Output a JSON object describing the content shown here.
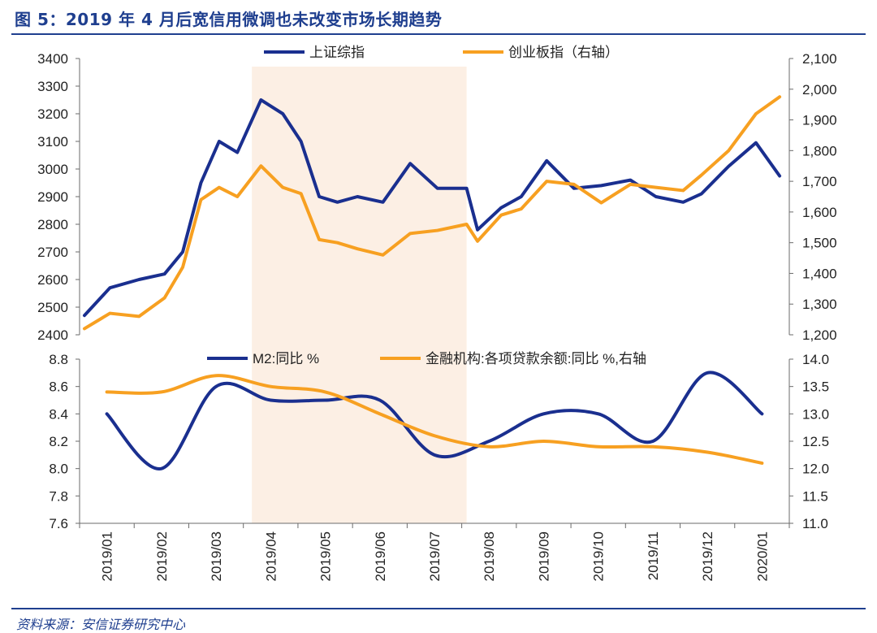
{
  "figure_title": "图 5：2019 年 4 月后宽信用微调也未改变市场长期趋势",
  "source_note": "资料来源：安信证券研究中心",
  "colors": {
    "navy": "#1a2f8f",
    "orange": "#f7a021",
    "shade": "#fcefe4",
    "axis": "#6b6b6b",
    "frame": "#1f3f8f"
  },
  "chart_data": [
    {
      "type": "line",
      "legend_position": "top",
      "grid": false,
      "shaded_period": {
        "from": "2019-04",
        "to": "2019-07"
      },
      "y_left": {
        "ticks": [
          "2400",
          "2500",
          "2600",
          "2700",
          "2800",
          "2900",
          "3000",
          "3100",
          "3200",
          "3300",
          "3400"
        ],
        "lim": [
          2400,
          3400
        ]
      },
      "y_right": {
        "ticks": [
          "1,200",
          "1,300",
          "1,400",
          "1,500",
          "1,600",
          "1,700",
          "1,800",
          "1,900",
          "2,000",
          "2,100"
        ],
        "lim": [
          1200,
          2100
        ]
      },
      "series": [
        {
          "name": "上证综指",
          "axis": "left",
          "color": "#1a2f8f",
          "x": [
            "2019-01",
            "2019-01-15",
            "2019-02-01",
            "2019-02-15",
            "2019-02-25",
            "2019-03-05",
            "2019-03-15",
            "2019-03-25",
            "2019-04-08",
            "2019-04-20",
            "2019-04-30",
            "2019-05-10",
            "2019-05-20",
            "2019-05-31",
            "2019-06-15",
            "2019-06-30",
            "2019-07-15",
            "2019-07-31",
            "2019-08-07",
            "2019-08-20",
            "2019-08-31",
            "2019-09-15",
            "2019-09-30",
            "2019-10-15",
            "2019-10-31",
            "2019-11-15",
            "2019-11-30",
            "2019-12-10",
            "2019-12-25",
            "2020-01-10",
            "2020-01-23"
          ],
          "y": [
            2470,
            2570,
            2600,
            2620,
            2700,
            2950,
            3100,
            3060,
            3250,
            3200,
            3100,
            2900,
            2880,
            2900,
            2880,
            3020,
            2930,
            2930,
            2780,
            2860,
            2900,
            3030,
            2930,
            2940,
            2960,
            2900,
            2880,
            2910,
            3010,
            3095,
            2975
          ]
        },
        {
          "name": "创业板指（右轴）",
          "axis": "right",
          "color": "#f7a021",
          "x": [
            "2019-01",
            "2019-01-15",
            "2019-02-01",
            "2019-02-15",
            "2019-02-25",
            "2019-03-05",
            "2019-03-15",
            "2019-03-25",
            "2019-04-08",
            "2019-04-20",
            "2019-04-30",
            "2019-05-10",
            "2019-05-20",
            "2019-05-31",
            "2019-06-15",
            "2019-06-30",
            "2019-07-15",
            "2019-07-31",
            "2019-08-07",
            "2019-08-20",
            "2019-08-31",
            "2019-09-15",
            "2019-09-30",
            "2019-10-15",
            "2019-10-31",
            "2019-11-15",
            "2019-11-30",
            "2019-12-10",
            "2019-12-25",
            "2020-01-10",
            "2020-01-23"
          ],
          "y": [
            1220,
            1270,
            1260,
            1320,
            1420,
            1640,
            1680,
            1650,
            1750,
            1680,
            1660,
            1510,
            1500,
            1480,
            1460,
            1530,
            1540,
            1560,
            1505,
            1590,
            1610,
            1700,
            1690,
            1630,
            1690,
            1680,
            1670,
            1720,
            1800,
            1920,
            1975
          ]
        }
      ]
    },
    {
      "type": "line",
      "legend_position": "top",
      "grid": false,
      "x_ticks": [
        "2019/01",
        "2019/02",
        "2019/03",
        "2019/04",
        "2019/05",
        "2019/06",
        "2019/07",
        "2019/08",
        "2019/09",
        "2019/10",
        "2019/11",
        "2019/12",
        "2020/01"
      ],
      "y_left": {
        "ticks": [
          "7.6",
          "7.8",
          "8.0",
          "8.2",
          "8.4",
          "8.6",
          "8.8"
        ],
        "lim": [
          7.6,
          8.8
        ]
      },
      "y_right": {
        "ticks": [
          "11.0",
          "11.5",
          "12.0",
          "12.5",
          "13.0",
          "13.5",
          "14.0"
        ],
        "lim": [
          11.0,
          14.0
        ]
      },
      "series": [
        {
          "name": "M2:同比 %",
          "axis": "left",
          "color": "#1a2f8f",
          "x": [
            "2019/01",
            "2019/02",
            "2019/03",
            "2019/04",
            "2019/05",
            "2019/06",
            "2019/07",
            "2019/08",
            "2019/09",
            "2019/10",
            "2019/11",
            "2019/12",
            "2020/01"
          ],
          "y": [
            8.4,
            8.0,
            8.6,
            8.5,
            8.5,
            8.5,
            8.1,
            8.2,
            8.4,
            8.4,
            8.2,
            8.7,
            8.4
          ]
        },
        {
          "name": "金融机构:各项贷款余额:同比 %,右轴",
          "axis": "right",
          "color": "#f7a021",
          "x": [
            "2019/01",
            "2019/02",
            "2019/03",
            "2019/04",
            "2019/05",
            "2019/06",
            "2019/07",
            "2019/08",
            "2019/09",
            "2019/10",
            "2019/11",
            "2019/12",
            "2020/01"
          ],
          "y": [
            13.4,
            13.4,
            13.7,
            13.5,
            13.4,
            13.0,
            12.6,
            12.4,
            12.5,
            12.4,
            12.4,
            12.3,
            12.1
          ]
        }
      ]
    }
  ]
}
